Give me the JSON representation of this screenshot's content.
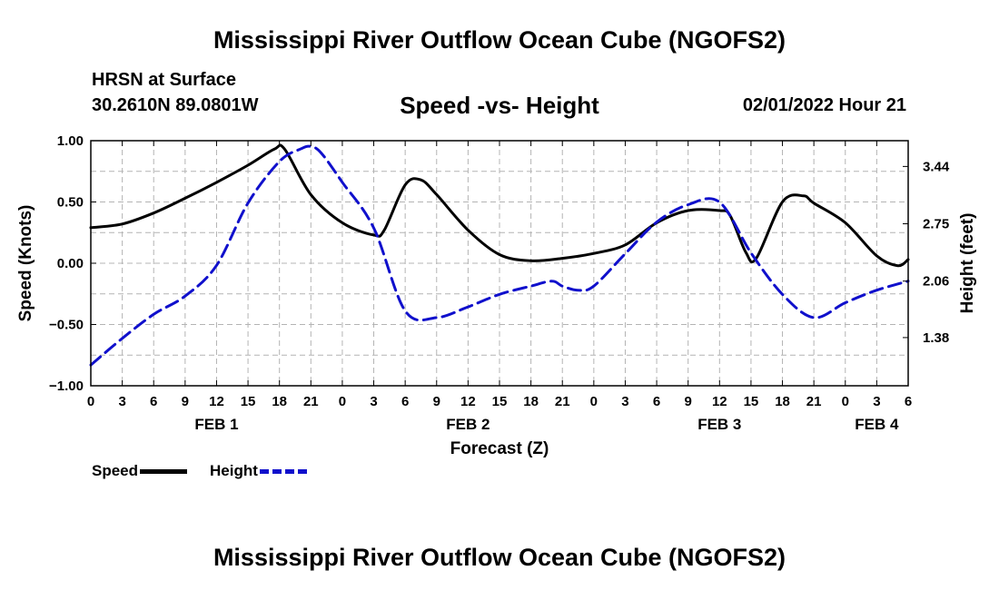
{
  "header": {
    "title": "Mississippi River Outflow Ocean Cube (NGOFS2)",
    "station": "HRSN at Surface",
    "coords": "30.2610N  89.0801W",
    "chart_title": "Speed -vs- Height",
    "timestamp": "02/01/2022 Hour 21"
  },
  "legend": {
    "speed": "Speed",
    "height": "Height"
  },
  "footer": {
    "title": "Mississippi River Outflow Ocean Cube (NGOFS2)"
  },
  "colors": {
    "speed": "#000000",
    "height": "#1010cc",
    "grid": "#b4b4b4"
  },
  "chart_data": {
    "type": "line",
    "title": "Speed -vs- Height",
    "xlabel": "Forecast (Z)",
    "ylabel": "Speed (Knots)",
    "y2label": "Height (feet)",
    "x_range_hours": [
      0,
      78
    ],
    "ylim": [
      -1.0,
      1.0
    ],
    "y2lim": [
      0.8,
      3.75
    ],
    "x_tick_labels": [
      "0",
      "3",
      "6",
      "9",
      "12",
      "15",
      "18",
      "21",
      "0",
      "3",
      "6",
      "9",
      "12",
      "15",
      "18",
      "21",
      "0",
      "3",
      "6",
      "9",
      "12",
      "15",
      "18",
      "21",
      "0",
      "3",
      "6"
    ],
    "date_labels": [
      {
        "label": "FEB 1",
        "hour": 12
      },
      {
        "label": "FEB 2",
        "hour": 36
      },
      {
        "label": "FEB 3",
        "hour": 60
      },
      {
        "label": "FEB 4",
        "hour": 75
      }
    ],
    "y_ticks": [
      1.0,
      0.5,
      0.0,
      -0.5,
      -1.0
    ],
    "y_tick_labels": [
      "1.00",
      "0.50",
      "0.00",
      "−0.50",
      "−1.00"
    ],
    "y2_ticks": [
      3.44,
      2.75,
      2.06,
      1.38
    ],
    "y2_tick_labels": [
      "3.44",
      "2.75",
      "2.06",
      "1.38"
    ],
    "series": [
      {
        "name": "Speed",
        "axis": "left",
        "style": "solid",
        "x": [
          0,
          3,
          6,
          9,
          12,
          15,
          17.5,
          18.5,
          21,
          24,
          27,
          28,
          30,
          31.5,
          33,
          36,
          39,
          42,
          45,
          48,
          51,
          54,
          57,
          60,
          61,
          62.5,
          63.5,
          66,
          68,
          69,
          72,
          75,
          77,
          78
        ],
        "y": [
          0.29,
          0.32,
          0.41,
          0.53,
          0.66,
          0.8,
          0.93,
          0.93,
          0.56,
          0.33,
          0.23,
          0.27,
          0.64,
          0.68,
          0.56,
          0.27,
          0.07,
          0.02,
          0.04,
          0.08,
          0.15,
          0.33,
          0.43,
          0.43,
          0.39,
          0.09,
          0.04,
          0.5,
          0.55,
          0.49,
          0.33,
          0.06,
          -0.02,
          0.03
        ]
      },
      {
        "name": "Height",
        "axis": "right",
        "style": "dashed",
        "x": [
          0,
          3,
          6,
          9,
          12,
          15,
          18,
          20,
          21,
          22,
          24,
          27,
          30,
          33,
          36,
          39,
          42,
          44,
          45,
          46.5,
          48,
          51,
          54,
          57,
          60,
          63,
          66,
          69,
          72,
          75,
          78
        ],
        "y": [
          1.05,
          1.37,
          1.66,
          1.88,
          2.25,
          3.0,
          3.5,
          3.65,
          3.68,
          3.6,
          3.25,
          2.7,
          1.7,
          1.62,
          1.75,
          1.9,
          2.0,
          2.06,
          2.0,
          1.95,
          2.0,
          2.39,
          2.77,
          2.98,
          3.01,
          2.4,
          1.9,
          1.62,
          1.8,
          1.95,
          2.06
        ]
      }
    ]
  }
}
